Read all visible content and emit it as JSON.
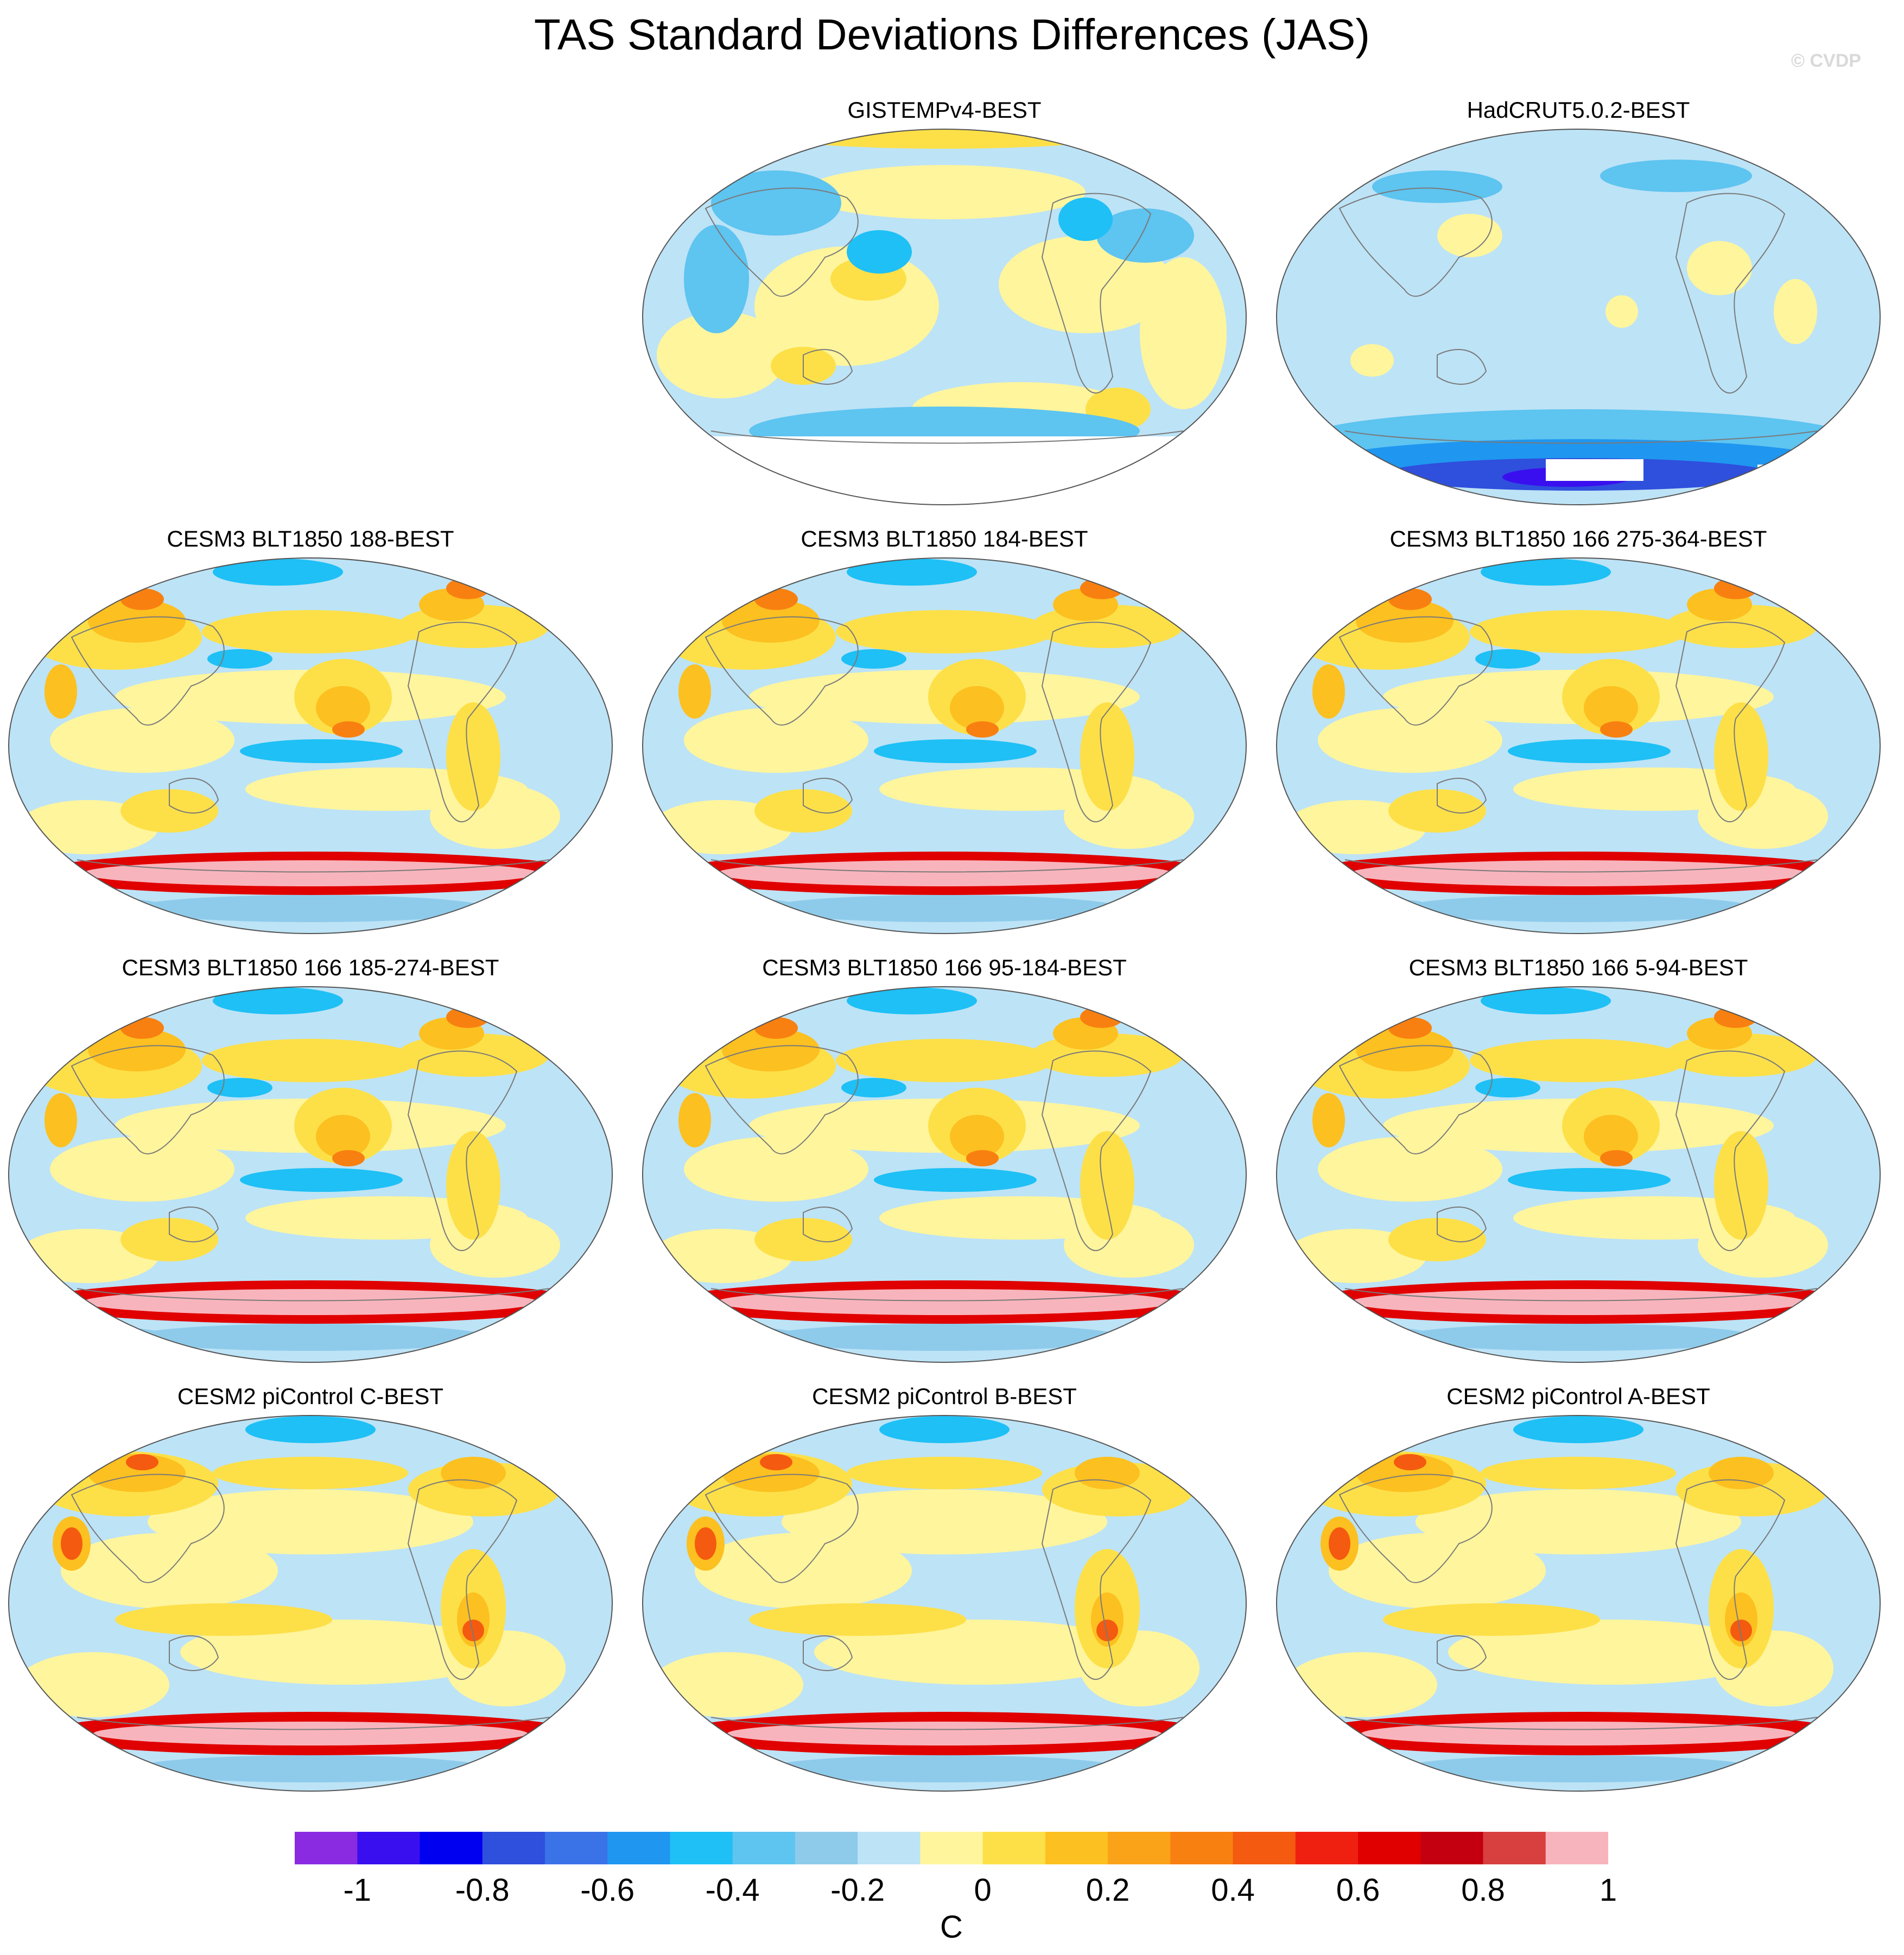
{
  "title": "TAS Standard Deviations Differences (JAS)",
  "watermark": "© CVDP",
  "panels": [
    {
      "id": "gistemp",
      "title": "GISTEMPv4-BEST",
      "kind": "obs1"
    },
    {
      "id": "hadcrut",
      "title": "HadCRUT5.0.2-BEST",
      "kind": "obs2"
    },
    {
      "id": "blt188",
      "title": "CESM3 BLT1850 188-BEST",
      "kind": "model"
    },
    {
      "id": "blt184",
      "title": "CESM3 BLT1850 184-BEST",
      "kind": "model"
    },
    {
      "id": "blt166a",
      "title": "CESM3 BLT1850 166 275-364-BEST",
      "kind": "model"
    },
    {
      "id": "blt166b",
      "title": "CESM3 BLT1850 166 185-274-BEST",
      "kind": "model"
    },
    {
      "id": "blt166c",
      "title": "CESM3 BLT1850 166 95-184-BEST",
      "kind": "model"
    },
    {
      "id": "blt166d",
      "title": "CESM3 BLT1850 166 5-94-BEST",
      "kind": "model"
    },
    {
      "id": "pic_c",
      "title": "CESM2 piControl C-BEST",
      "kind": "picontrol"
    },
    {
      "id": "pic_b",
      "title": "CESM2 piControl B-BEST",
      "kind": "picontrol"
    },
    {
      "id": "pic_a",
      "title": "CESM2 piControl A-BEST",
      "kind": "picontrol"
    }
  ],
  "colorbar": {
    "units": "C",
    "colors": [
      "#8a2be2",
      "#3a0fef",
      "#0000f0",
      "#2f4fdd",
      "#3a72e8",
      "#1f96f0",
      "#1ec0f5",
      "#5ec4f0",
      "#8ecbeb",
      "#bde3f6",
      "#fff59d",
      "#fde048",
      "#fcc020",
      "#faa218",
      "#f88010",
      "#f45a10",
      "#f02010",
      "#e00000",
      "#c40010",
      "#d84040",
      "#f8b4bc"
    ],
    "tick_labels": [
      "-1",
      "-0.8",
      "-0.6",
      "-0.4",
      "-0.2",
      "0",
      "0.2",
      "0.4",
      "0.6",
      "0.8",
      "1"
    ]
  },
  "chart_data": {
    "type": "heatmap",
    "title": "TAS Standard Deviations Differences (JAS)",
    "units": "C",
    "color_levels": [
      -1.1,
      -1,
      -0.9,
      -0.8,
      -0.7,
      -0.6,
      -0.5,
      -0.4,
      -0.3,
      -0.2,
      -0.1,
      0,
      0.1,
      0.2,
      0.3,
      0.4,
      0.5,
      0.6,
      0.7,
      0.8,
      0.9,
      1,
      1.1
    ],
    "colorbar_ticks": [
      -1,
      -0.8,
      -0.6,
      -0.4,
      -0.2,
      0,
      0.2,
      0.4,
      0.6,
      0.8,
      1
    ],
    "panels": [
      "GISTEMPv4-BEST",
      "HadCRUT5.0.2-BEST",
      "CESM3 BLT1850 188-BEST",
      "CESM3 BLT1850 184-BEST",
      "CESM3 BLT1850 166 275-364-BEST",
      "CESM3 BLT1850 166 185-274-BEST",
      "CESM3 BLT1850 166 95-184-BEST",
      "CESM3 BLT1850 166 5-94-BEST",
      "CESM2 piControl C-BEST",
      "CESM2 piControl B-BEST",
      "CESM2 piControl A-BEST"
    ]
  }
}
